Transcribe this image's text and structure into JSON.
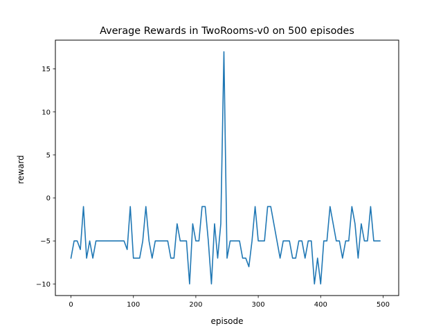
{
  "chart_data": {
    "type": "line",
    "title": "Average Rewards in TwoRooms-v0 on 500 episodes",
    "xlabel": "episode",
    "ylabel": "reward",
    "xlim": [
      -25,
      525
    ],
    "ylim": [
      -11.35,
      18.35
    ],
    "xticks": [
      0,
      100,
      200,
      300,
      400,
      500
    ],
    "yticks": [
      -10,
      -5,
      0,
      5,
      10,
      15
    ],
    "grid": false,
    "series": [
      {
        "color": "#1f77b4",
        "x": [
          0,
          5,
          10,
          15,
          20,
          25,
          30,
          35,
          40,
          45,
          50,
          55,
          60,
          65,
          70,
          75,
          80,
          85,
          90,
          95,
          100,
          105,
          110,
          115,
          120,
          125,
          130,
          135,
          140,
          145,
          150,
          155,
          160,
          165,
          170,
          175,
          180,
          185,
          190,
          195,
          200,
          205,
          210,
          215,
          220,
          225,
          230,
          235,
          240,
          245,
          250,
          255,
          260,
          265,
          270,
          275,
          280,
          285,
          290,
          295,
          300,
          305,
          310,
          315,
          320,
          325,
          330,
          335,
          340,
          345,
          350,
          355,
          360,
          365,
          370,
          375,
          380,
          385,
          390,
          395,
          400,
          405,
          410,
          415,
          420,
          425,
          430,
          435,
          440,
          445,
          450,
          455,
          460,
          465,
          470,
          475,
          480,
          485,
          490,
          495
        ],
        "y": [
          -7,
          -5,
          -5,
          -6,
          -1,
          -7,
          -5,
          -7,
          -5,
          -5,
          -5,
          -5,
          -5,
          -5,
          -5,
          -5,
          -5,
          -5,
          -6,
          -1,
          -7,
          -7,
          -7,
          -5,
          -1,
          -5,
          -7,
          -5,
          -5,
          -5,
          -5,
          -5,
          -7,
          -7,
          -3,
          -5,
          -5,
          -5,
          -10,
          -3,
          -5,
          -5,
          -1,
          -1,
          -5,
          -10,
          -3,
          -7,
          -3,
          17,
          -7,
          -5,
          -5,
          -5,
          -5,
          -7,
          -7,
          -8,
          -5,
          -1,
          -5,
          -5,
          -5,
          -1,
          -1,
          -3,
          -5,
          -7,
          -5,
          -5,
          -5,
          -7,
          -7,
          -5,
          -5,
          -7,
          -5,
          -5,
          -10,
          -7,
          -10,
          -5,
          -5,
          -1,
          -3,
          -5,
          -5,
          -7,
          -5,
          -5,
          -1,
          -3,
          -7,
          -3,
          -5,
          -5,
          -1,
          -5,
          -5,
          -5
        ]
      }
    ]
  }
}
